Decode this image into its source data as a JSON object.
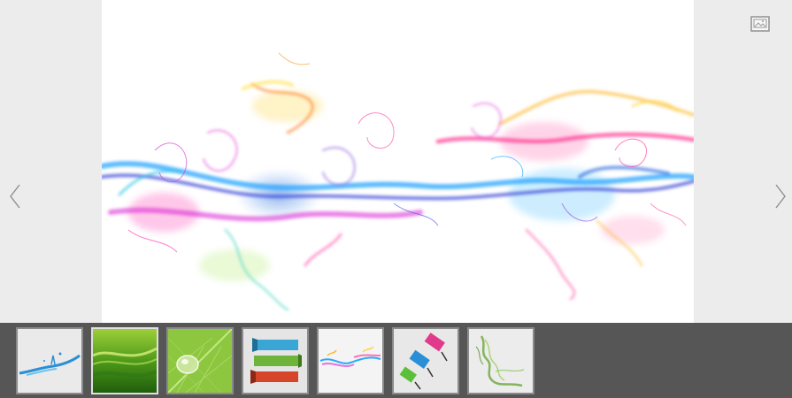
{
  "viewer": {
    "main_image": "rainbow-smoke-wave",
    "prev_icon": "chevron-left-icon",
    "next_icon": "chevron-right-icon",
    "gallery_icon": "image-gallery-icon"
  },
  "thumbnails": [
    {
      "subject": "blue-water-splash",
      "active": false
    },
    {
      "subject": "green-wave-abstract",
      "active": true
    },
    {
      "subject": "green-leaf-water-drop",
      "active": false
    },
    {
      "subject": "colored-ribbon-banners",
      "active": false
    },
    {
      "subject": "rainbow-smoke-wave",
      "active": false
    },
    {
      "subject": "paper-tags",
      "active": false
    },
    {
      "subject": "green-smoke",
      "active": false
    }
  ],
  "colors": {
    "stage_background": "#ececec",
    "strip_background": "#565656",
    "thumb_border": "#8a8a8a",
    "thumb_active_border": "#e0e0e0"
  }
}
